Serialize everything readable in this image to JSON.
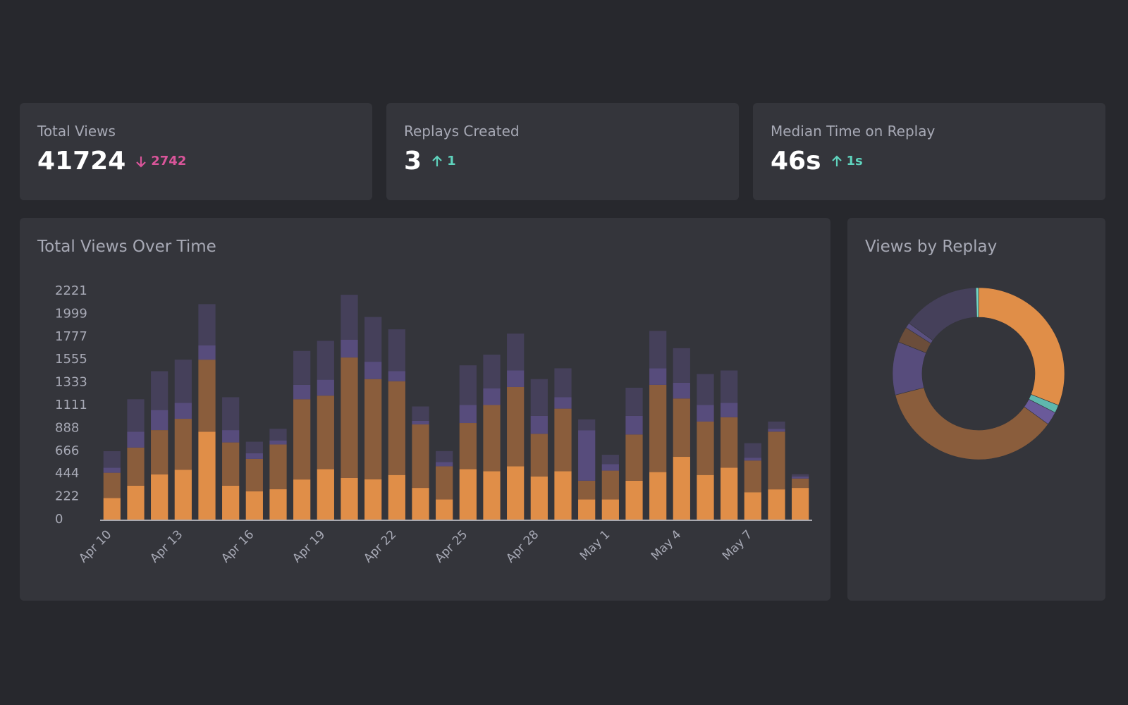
{
  "stats": [
    {
      "label": "Total Views",
      "value": 41724,
      "delta": 2742,
      "direction": "down"
    },
    {
      "label": "Replays Created",
      "value": 3,
      "delta": 1,
      "direction": "up"
    },
    {
      "label": "Median Time on Replay",
      "value": "46s",
      "delta": "1s",
      "direction": "up"
    }
  ],
  "chart_data": [
    {
      "type": "bar",
      "stacked": true,
      "title": "Total Views Over Time",
      "categories": [
        "Apr 10",
        null,
        null,
        "Apr 13",
        null,
        null,
        "Apr 16",
        null,
        null,
        "Apr 19",
        null,
        null,
        "Apr 22",
        null,
        null,
        "Apr 25",
        null,
        null,
        "Apr 28",
        null,
        null,
        "May 1",
        null,
        null,
        "May 4",
        null,
        null,
        "May 7",
        null,
        null
      ],
      "series": [
        {
          "color": "#e08e48",
          "values": [
            210,
            330,
            440,
            485,
            855,
            330,
            275,
            295,
            390,
            490,
            406,
            392,
            434,
            308,
            196,
            490,
            470,
            518,
            420,
            470,
            196,
            196,
            378,
            462,
            610,
            434,
            504,
            266,
            294,
            308
          ]
        },
        {
          "color": "#8a5d3c",
          "values": [
            245,
            370,
            430,
            495,
            700,
            420,
            315,
            435,
            780,
            715,
            1170,
            974,
            911,
            617,
            322,
            449,
            644,
            771,
            414,
            609,
            182,
            280,
            449,
            848,
            567,
            519,
            491,
            308,
            561,
            91
          ]
        },
        {
          "color": "#574c7c",
          "values": [
            50,
            155,
            195,
            155,
            140,
            120,
            55,
            40,
            140,
            155,
            174,
            169,
            98,
            35,
            42,
            175,
            161,
            161,
            175,
            112,
            491,
            64,
            182,
            161,
            154,
            161,
            140,
            28,
            28,
            21
          ]
        },
        {
          "color": "#45405a",
          "values": [
            160,
            315,
            378,
            420,
            400,
            320,
            112,
            113,
            330,
            378,
            436,
            435,
            407,
            140,
            106,
            386,
            329,
            358,
            357,
            280,
            105,
            90,
            273,
            364,
            336,
            301,
            315,
            141,
            70,
            21
          ]
        }
      ],
      "ylim": [
        0,
        2221
      ],
      "yticks": [
        0,
        222,
        444,
        666,
        888,
        1111,
        1333,
        1555,
        1777,
        1999,
        2221
      ],
      "grid": false
    },
    {
      "type": "pie",
      "donut": true,
      "title": "Views by Replay",
      "values": [
        31,
        1.5,
        2.5,
        36,
        10,
        3,
        1,
        14.5,
        0.5
      ],
      "colors": [
        "#e08e48",
        "#5fb8ad",
        "#6a5a9a",
        "#8a5d3c",
        "#574c7c",
        "#6b4d3a",
        "#5a5080",
        "#45405a",
        "#6fd6c6"
      ]
    }
  ]
}
